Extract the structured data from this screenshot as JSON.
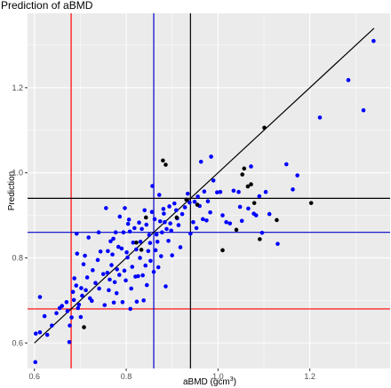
{
  "chart_data": {
    "type": "scatter",
    "title": "Prediction of aBMD",
    "xlabel": "aBMD (gcm",
    "xlabel_sup": "3",
    "xlabel_close": ")",
    "ylabel": "Prediction",
    "xlim": [
      0.585,
      1.375
    ],
    "ylim": [
      0.54,
      1.375
    ],
    "x_ticks": [
      0.6,
      0.8,
      1.0,
      1.2
    ],
    "x_tick_labels": [
      "0.6",
      "0.8",
      "1.0",
      "1.2"
    ],
    "y_ticks": [
      0.6,
      0.8,
      1.0,
      1.2
    ],
    "y_tick_labels": [
      "0.6",
      "0.8",
      "1.0",
      "1.2"
    ],
    "grid": true,
    "panel_background": "#ebebeb",
    "grid_color": "#ffffff",
    "diagonal_line": {
      "x": [
        0.6,
        1.34
      ],
      "y": [
        0.6,
        1.34
      ],
      "color": "#000000"
    },
    "reference_lines": [
      {
        "orientation": "vertical",
        "value": 0.68,
        "color": "#ff0000"
      },
      {
        "orientation": "horizontal",
        "value": 0.68,
        "color": "#ff0000"
      },
      {
        "orientation": "vertical",
        "value": 0.86,
        "color": "#0000cc"
      },
      {
        "orientation": "horizontal",
        "value": 0.86,
        "color": "#0000cc"
      },
      {
        "orientation": "vertical",
        "value": 0.94,
        "color": "#000000"
      },
      {
        "orientation": "horizontal",
        "value": 0.94,
        "color": "#000000"
      }
    ],
    "series": [
      {
        "color": "#0000ff",
        "points": [
          [
            0.602,
            0.555
          ],
          [
            0.603,
            0.622
          ],
          [
            0.612,
            0.625
          ],
          [
            0.612,
            0.708
          ],
          [
            0.622,
            0.663
          ],
          [
            0.628,
            0.619
          ],
          [
            0.638,
            0.641
          ],
          [
            0.648,
            0.67
          ],
          [
            0.655,
            0.682
          ],
          [
            0.66,
            0.687
          ],
          [
            0.67,
            0.696
          ],
          [
            0.672,
            0.675
          ],
          [
            0.676,
            0.602
          ],
          [
            0.677,
            0.641
          ],
          [
            0.681,
            0.66
          ],
          [
            0.684,
            0.72
          ],
          [
            0.686,
            0.701
          ],
          [
            0.687,
            0.752
          ],
          [
            0.691,
            0.735
          ],
          [
            0.692,
            0.857
          ],
          [
            0.693,
            0.81
          ],
          [
            0.695,
            0.682
          ],
          [
            0.697,
            0.69
          ],
          [
            0.701,
            0.661
          ],
          [
            0.702,
            0.729
          ],
          [
            0.704,
            0.711
          ],
          [
            0.707,
            0.785
          ],
          [
            0.71,
            0.805
          ],
          [
            0.712,
            0.724
          ],
          [
            0.715,
            0.754
          ],
          [
            0.718,
            0.848
          ],
          [
            0.721,
            0.705
          ],
          [
            0.725,
            0.699
          ],
          [
            0.727,
            0.771
          ],
          [
            0.733,
            0.741
          ],
          [
            0.738,
            0.795
          ],
          [
            0.74,
            0.86
          ],
          [
            0.741,
            0.728
          ],
          [
            0.744,
            0.815
          ],
          [
            0.75,
            0.762
          ],
          [
            0.753,
            0.689
          ],
          [
            0.756,
            0.917
          ],
          [
            0.759,
            0.765
          ],
          [
            0.76,
            0.816
          ],
          [
            0.762,
            0.724
          ],
          [
            0.764,
            0.749
          ],
          [
            0.766,
            0.839
          ],
          [
            0.768,
            0.783
          ],
          [
            0.77,
            0.808
          ],
          [
            0.772,
            0.845
          ],
          [
            0.773,
            0.695
          ],
          [
            0.775,
            0.743
          ],
          [
            0.777,
            0.86
          ],
          [
            0.779,
            0.717
          ],
          [
            0.78,
            0.773
          ],
          [
            0.783,
            0.826
          ],
          [
            0.785,
            0.76
          ],
          [
            0.786,
            0.897
          ],
          [
            0.79,
            0.822
          ],
          [
            0.792,
            0.696
          ],
          [
            0.794,
            0.86
          ],
          [
            0.796,
            0.77
          ],
          [
            0.797,
            0.917
          ],
          [
            0.799,
            0.747
          ],
          [
            0.801,
            0.813
          ],
          [
            0.803,
            0.801
          ],
          [
            0.804,
            0.88
          ],
          [
            0.806,
            0.89
          ],
          [
            0.808,
            0.862
          ],
          [
            0.809,
            0.68
          ],
          [
            0.811,
            0.728
          ],
          [
            0.813,
            0.779
          ],
          [
            0.815,
            0.836
          ],
          [
            0.818,
            0.87
          ],
          [
            0.82,
            0.756
          ],
          [
            0.822,
            0.82
          ],
          [
            0.823,
            0.697
          ],
          [
            0.826,
            0.757
          ],
          [
            0.828,
            0.883
          ],
          [
            0.83,
            0.8
          ],
          [
            0.831,
            0.838
          ],
          [
            0.834,
            0.868
          ],
          [
            0.836,
            0.759
          ],
          [
            0.838,
            0.7
          ],
          [
            0.84,
            0.912
          ],
          [
            0.842,
            0.782
          ],
          [
            0.844,
            0.878
          ],
          [
            0.845,
            0.736
          ],
          [
            0.848,
            0.816
          ],
          [
            0.85,
            0.854
          ],
          [
            0.852,
            0.835
          ],
          [
            0.853,
            0.793
          ],
          [
            0.856,
            0.908
          ],
          [
            0.857,
            0.969
          ],
          [
            0.86,
            0.767
          ],
          [
            0.862,
            0.891
          ],
          [
            0.864,
            0.818
          ],
          [
            0.866,
            0.855
          ],
          [
            0.868,
            0.838
          ],
          [
            0.87,
            0.778
          ],
          [
            0.872,
            0.948
          ],
          [
            0.874,
            0.886
          ],
          [
            0.876,
            0.804
          ],
          [
            0.878,
            0.86
          ],
          [
            0.881,
            0.915
          ],
          [
            0.882,
            0.904
          ],
          [
            0.884,
            0.884
          ],
          [
            0.886,
            0.733
          ],
          [
            0.888,
            0.868
          ],
          [
            0.892,
            0.84
          ],
          [
            0.894,
            0.921
          ],
          [
            0.896,
            0.881
          ],
          [
            0.898,
            0.864
          ],
          [
            0.9,
            0.806
          ],
          [
            0.905,
            0.928
          ],
          [
            0.909,
            0.912
          ],
          [
            0.911,
            0.893
          ],
          [
            0.914,
            0.877
          ],
          [
            0.918,
            0.825
          ],
          [
            0.922,
            0.903
          ],
          [
            0.928,
            0.919
          ],
          [
            0.934,
            0.951
          ],
          [
            0.938,
            0.93
          ],
          [
            0.94,
            0.857
          ],
          [
            0.946,
            0.884
          ],
          [
            0.949,
            0.932
          ],
          [
            0.953,
            0.87
          ],
          [
            0.956,
            0.944
          ],
          [
            0.96,
            0.922
          ],
          [
            0.963,
            1.026
          ],
          [
            0.967,
            0.891
          ],
          [
            0.97,
            0.956
          ],
          [
            0.975,
            0.888
          ],
          [
            0.978,
            0.933
          ],
          [
            0.983,
            0.907
          ],
          [
            0.985,
            1.038
          ],
          [
            0.99,
            0.982
          ],
          [
            0.998,
            0.954
          ],
          [
            1.005,
            0.955
          ],
          [
            1.01,
            0.9
          ],
          [
            1.018,
            0.884
          ],
          [
            1.026,
            0.881
          ],
          [
            1.034,
            0.958
          ],
          [
            1.045,
            0.955
          ],
          [
            1.048,
            0.92
          ],
          [
            1.052,
            0.887
          ],
          [
            1.066,
            0.916
          ],
          [
            1.072,
            1.015
          ],
          [
            1.078,
            0.904
          ],
          [
            1.083,
            0.9
          ],
          [
            1.09,
            0.945
          ],
          [
            1.096,
            0.859
          ],
          [
            1.104,
            0.955
          ],
          [
            1.112,
            0.903
          ],
          [
            1.13,
            0.833
          ],
          [
            1.149,
            1.02
          ],
          [
            1.163,
            0.961
          ],
          [
            1.173,
            0.994
          ],
          [
            1.222,
            1.13
          ],
          [
            1.284,
            1.218
          ],
          [
            1.317,
            1.147
          ],
          [
            1.339,
            1.31
          ]
        ]
      },
      {
        "color": "#000000",
        "points": [
          [
            0.708,
            0.637
          ],
          [
            0.822,
            0.836
          ],
          [
            0.833,
            0.819
          ],
          [
            0.843,
            0.895
          ],
          [
            0.88,
            1.029
          ],
          [
            0.886,
            1.019
          ],
          [
            0.91,
            0.895
          ],
          [
            0.931,
            0.937
          ],
          [
            0.955,
            0.925
          ],
          [
            1.01,
            0.818
          ],
          [
            1.04,
            0.866
          ],
          [
            1.053,
            0.996
          ],
          [
            1.057,
            1.01
          ],
          [
            1.065,
            0.968
          ],
          [
            1.072,
            0.973
          ],
          [
            1.091,
            0.844
          ],
          [
            1.101,
            1.106
          ],
          [
            1.128,
            0.889
          ],
          [
            1.203,
            0.929
          ],
          [
            1.079,
            0.929
          ]
        ]
      }
    ]
  }
}
